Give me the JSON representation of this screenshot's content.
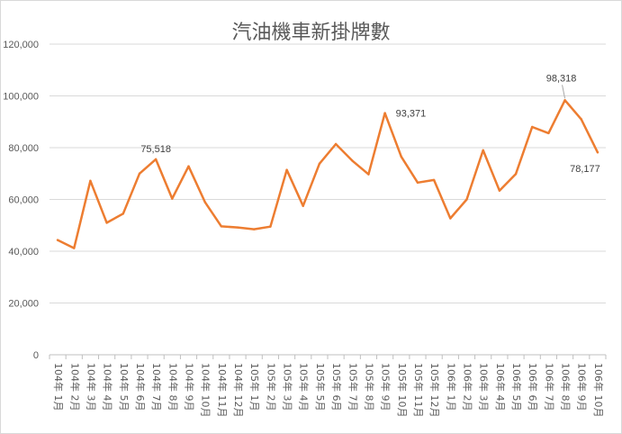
{
  "chart_data": {
    "type": "line",
    "title": "汽油機車新掛牌數",
    "xlabel": "",
    "ylabel": "",
    "ylim": [
      0,
      120000
    ],
    "yticks": [
      "0",
      "20,000",
      "40,000",
      "60,000",
      "80,000",
      "100,000",
      "120,000"
    ],
    "grid": true,
    "legend": "none",
    "line_color": "#ed7d31",
    "categories": [
      "104年 1月",
      "104年 2月",
      "104年 3月",
      "104年 4月",
      "104年 5月",
      "104年 6月",
      "104年 7月",
      "104年 8月",
      "104年 9月",
      "104年 10月",
      "104年 11月",
      "104年 12月",
      "105年 1月",
      "105年 2月",
      "105年 3月",
      "105年 4月",
      "105年 5月",
      "105年 6月",
      "105年 7月",
      "105年 8月",
      "105年 9月",
      "105年 10月",
      "105年 11月",
      "105年 12月",
      "106年 1月",
      "106年 2月",
      "106年 3月",
      "106年 4月",
      "106年 5月",
      "106年 6月",
      "106年 7月",
      "106年 8月",
      "106年 9月",
      "106年 10月"
    ],
    "series": [
      {
        "values": [
          44300,
          41200,
          67200,
          51000,
          54500,
          70000,
          75518,
          60300,
          72800,
          59000,
          49600,
          49200,
          48500,
          49500,
          71400,
          57500,
          73800,
          81400,
          75000,
          69700,
          93371,
          76500,
          66500,
          67500,
          52700,
          60000,
          79000,
          63400,
          69800,
          88000,
          85600,
          98318,
          91000,
          78177
        ]
      }
    ],
    "data_labels": [
      {
        "index": 6,
        "text": "75,518"
      },
      {
        "index": 20,
        "text": "93,371"
      },
      {
        "index": 31,
        "text": "98,318"
      },
      {
        "index": 33,
        "text": "78,177"
      }
    ]
  }
}
